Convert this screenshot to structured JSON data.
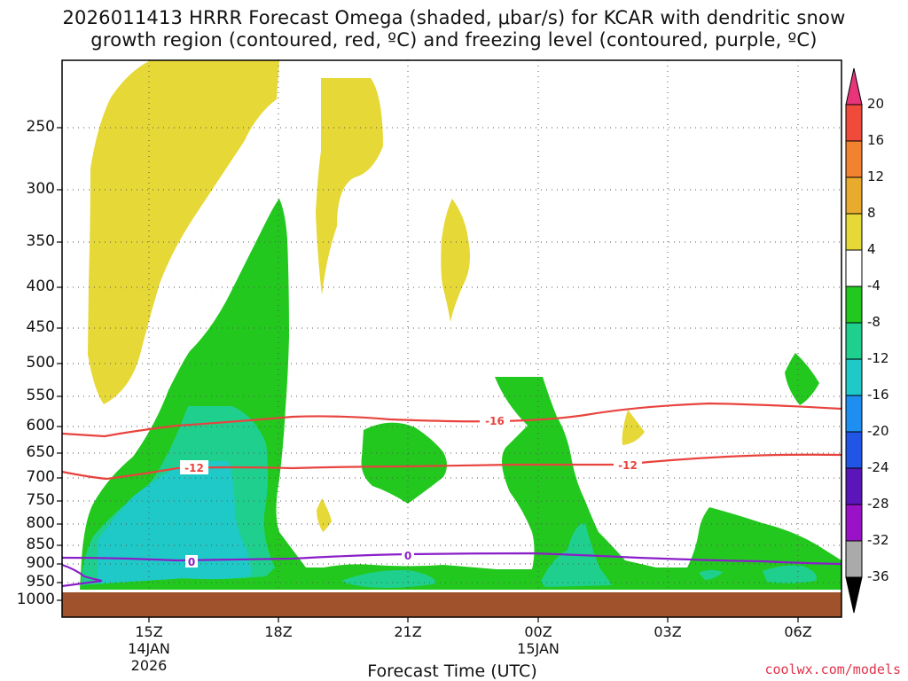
{
  "chart_data": {
    "type": "heatmap",
    "title_line1": "2026011413 HRRR Forecast Omega (shaded, μbar/s) for KCAR with dendritic snow",
    "title_line2": "growth region (contoured, red, ºC) and freezing level (contoured, purple, ºC)",
    "xlabel": "Forecast Time (UTC)",
    "x_ticks": [
      {
        "label": "15Z",
        "sub1": "14JAN",
        "sub2": "2026"
      },
      {
        "label": "18Z",
        "sub1": "",
        "sub2": ""
      },
      {
        "label": "21Z",
        "sub1": "",
        "sub2": ""
      },
      {
        "label": "00Z",
        "sub1": "15JAN",
        "sub2": ""
      },
      {
        "label": "03Z",
        "sub1": "",
        "sub2": ""
      },
      {
        "label": "06Z",
        "sub1": "",
        "sub2": ""
      }
    ],
    "y_ticks": [
      "250",
      "300",
      "350",
      "400",
      "450",
      "500",
      "550",
      "600",
      "650",
      "700",
      "750",
      "800",
      "850",
      "900",
      "950",
      "1000"
    ],
    "colorbar": {
      "labels": [
        "20",
        "16",
        "12",
        "8",
        "4",
        "-4",
        "-8",
        "-12",
        "-16",
        "-20",
        "-24",
        "-28",
        "-32",
        "-36"
      ],
      "colors": [
        "#e8357a",
        "#f04a3a",
        "#f08230",
        "#e8ab2e",
        "#e6d836",
        "#ffffff",
        "#22c81e",
        "#1fcf8e",
        "#1ec9c8",
        "#1e8ef0",
        "#2055e6",
        "#5a16b8",
        "#9a12c8",
        "#aaaaaa",
        "#000000"
      ]
    },
    "contours": [
      {
        "name": "dgz-minus-16",
        "label": "-16",
        "color": "#e8433e"
      },
      {
        "name": "dgz-minus-12",
        "label": "-12",
        "color": "#e8433e"
      },
      {
        "name": "freezing-level",
        "label": "0",
        "color": "#8a1ec8"
      }
    ],
    "ground_color": "#a0522d"
  },
  "credit": "coolwx.com/models"
}
